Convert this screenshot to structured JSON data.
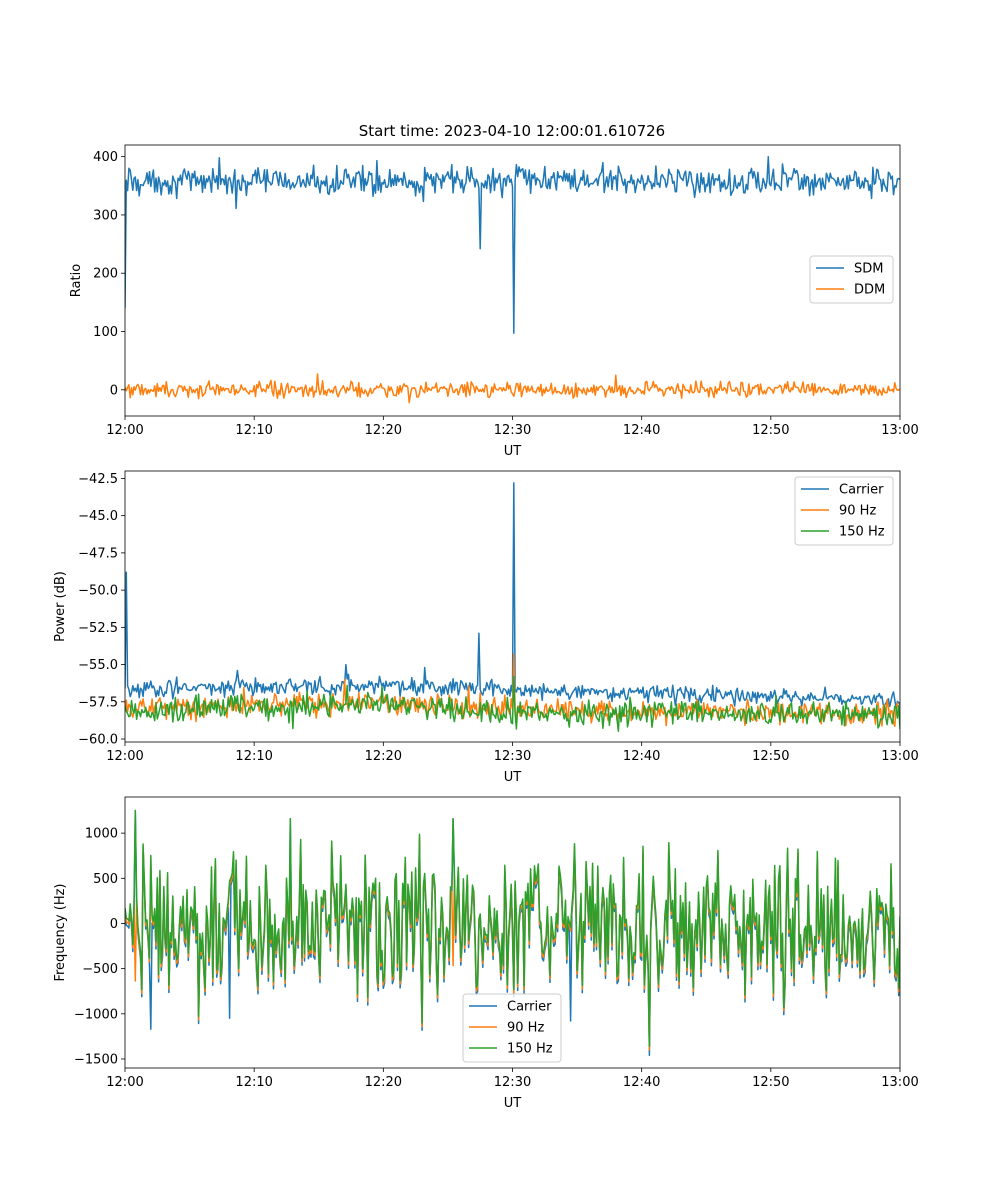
{
  "figure": {
    "title": "Start time: 2023-04-10 12:00:01.610726",
    "colors": {
      "blue": "#1f77b4",
      "orange": "#ff7f0e",
      "green": "#2ca02c"
    }
  },
  "chart_data": [
    {
      "type": "line",
      "title": "Start time: 2023-04-10 12:00:01.610726",
      "xlabel": "UT",
      "ylabel": "Ratio",
      "xlim": [
        "12:00",
        "13:00"
      ],
      "ylim": [
        -45,
        420
      ],
      "xticks": [
        "12:00",
        "12:10",
        "12:20",
        "12:30",
        "12:40",
        "12:50",
        "13:00"
      ],
      "yticks": [
        0,
        100,
        200,
        300,
        400
      ],
      "legend": "center-right",
      "grid": false,
      "series": [
        {
          "name": "SDM",
          "color": "#1f77b4",
          "profile": {
            "base": 358,
            "noise": 14,
            "x_step_min": 0.1,
            "features": [
              {
                "x": "12:00",
                "y": 140
              },
              {
                "x": "12:00.3",
                "y": 380
              },
              {
                "x": "12:07.3",
                "y": 398
              },
              {
                "x": "12:08.6",
                "y": 311
              },
              {
                "x": "12:27.5",
                "y": 242
              },
              {
                "x": "12:30.1",
                "y": 97
              },
              {
                "x": "12:49.8",
                "y": 400
              }
            ]
          }
        },
        {
          "name": "DDM",
          "color": "#ff7f0e",
          "profile": {
            "base": 0,
            "noise": 8,
            "x_step_min": 0.1,
            "features": [
              {
                "x": "12:14.9",
                "y": 27
              },
              {
                "x": "12:38.0",
                "y": 25
              },
              {
                "x": "12:22.0",
                "y": -22
              }
            ]
          }
        }
      ]
    },
    {
      "type": "line",
      "xlabel": "UT",
      "ylabel": "Power (dB)",
      "xlim": [
        "12:00",
        "13:00"
      ],
      "ylim": [
        -60.2,
        -42.0
      ],
      "xticks": [
        "12:00",
        "12:10",
        "12:20",
        "12:30",
        "12:40",
        "12:50",
        "13:00"
      ],
      "yticks": [
        "−42.5",
        "−45.0",
        "−47.5",
        "−50.0",
        "−52.5",
        "−55.0",
        "−57.5",
        "−60.0"
      ],
      "legend": "top-right",
      "grid": false,
      "series": [
        {
          "name": "Carrier",
          "color": "#1f77b4",
          "profile": {
            "segments": [
              {
                "x": "12:00",
                "y": -56.6
              },
              {
                "x": "12:20",
                "y": -56.4
              },
              {
                "x": "12:30",
                "y": -56.7
              },
              {
                "x": "13:00",
                "y": -57.4
              }
            ],
            "noise": 0.35,
            "x_step_min": 0.1,
            "features": [
              {
                "x": "12:00.1",
                "y": -48.8
              },
              {
                "x": "12:08.7",
                "y": -55.4
              },
              {
                "x": "12:17.1",
                "y": -55.0
              },
              {
                "x": "12:23.2",
                "y": -55.2
              },
              {
                "x": "12:27.4",
                "y": -52.9
              },
              {
                "x": "12:30.1",
                "y": -42.8
              }
            ]
          }
        },
        {
          "name": "90 Hz",
          "color": "#ff7f0e",
          "profile": {
            "segments": [
              {
                "x": "12:00",
                "y": -57.9
              },
              {
                "x": "12:20",
                "y": -57.6
              },
              {
                "x": "12:30",
                "y": -58.0
              },
              {
                "x": "13:00",
                "y": -58.3
              }
            ],
            "noise": 0.45,
            "x_step_min": 0.1,
            "features": [
              {
                "x": "12:30.1",
                "y": -54.3
              },
              {
                "x": "12:17.0",
                "y": -56.0
              }
            ]
          }
        },
        {
          "name": "150 Hz",
          "color": "#2ca02c",
          "profile": {
            "segments": [
              {
                "x": "12:00",
                "y": -58.1
              },
              {
                "x": "12:20",
                "y": -57.7
              },
              {
                "x": "12:30",
                "y": -58.2
              },
              {
                "x": "13:00",
                "y": -58.4
              }
            ],
            "noise": 0.5,
            "x_step_min": 0.1,
            "features": [
              {
                "x": "12:30.1",
                "y": -55.8
              },
              {
                "x": "12:17.2",
                "y": -56.4
              },
              {
                "x": "12:13.0",
                "y": -59.3
              }
            ]
          }
        }
      ]
    },
    {
      "type": "line",
      "xlabel": "UT",
      "ylabel": "Frequency (Hz)",
      "xlim": [
        "12:00",
        "13:00"
      ],
      "ylim": [
        -1600,
        1400
      ],
      "xticks": [
        "12:00",
        "12:10",
        "12:20",
        "12:30",
        "12:40",
        "12:50",
        "13:00"
      ],
      "yticks": [
        "−1500",
        "−1000",
        "−500",
        "0",
        "500",
        "1000"
      ],
      "legend": "bottom-center",
      "grid": false,
      "series": [
        {
          "name": "Carrier",
          "color": "#1f77b4",
          "profile": {
            "base": -80,
            "noise": 420,
            "x_step_min": 0.1,
            "offset": -70,
            "features": [
              {
                "x": "12:00.8",
                "y": 1250
              },
              {
                "x": "12:02.0",
                "y": -1170
              },
              {
                "x": "12:08.1",
                "y": -1050
              },
              {
                "x": "12:12.8",
                "y": 1160
              },
              {
                "x": "12:25.4",
                "y": 1160
              },
              {
                "x": "12:34.5",
                "y": -1080
              },
              {
                "x": "12:40.6",
                "y": -1460
              }
            ]
          }
        },
        {
          "name": "90 Hz",
          "color": "#ff7f0e",
          "profile": {
            "base": -40,
            "noise": 420,
            "x_step_min": 0.1,
            "offset": -30,
            "features": [
              {
                "x": "12:40.6",
                "y": -1400
              }
            ]
          }
        },
        {
          "name": "150 Hz",
          "color": "#2ca02c",
          "profile": {
            "base": 0,
            "noise": 420,
            "x_step_min": 0.1,
            "offset": 0,
            "features": [
              {
                "x": "12:00.8",
                "y": 1250
              },
              {
                "x": "12:12.8",
                "y": 1160
              },
              {
                "x": "12:25.4",
                "y": 1160
              },
              {
                "x": "12:40.6",
                "y": -1360
              }
            ]
          }
        }
      ]
    }
  ]
}
